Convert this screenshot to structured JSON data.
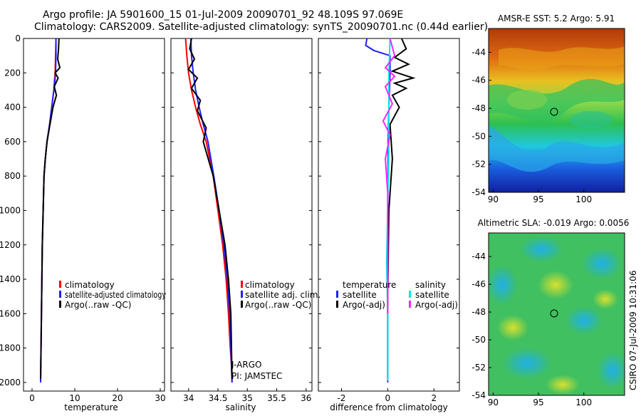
{
  "figure": {
    "title_line1": "Argo profile: JA 5901600_15 01-Jul-2009 20090701_92 48.109S 97.069E",
    "title_line2": "Climatology: CARS2009. Satellite-adjusted climatology: synTS_20090701.nc (0.44d earlier)",
    "side_stamp": "CSIRO 07-Jul-2009 10:31:06",
    "colors": {
      "climatology": "#ff0000",
      "satellite": "#1f1fff",
      "argo": "#000000",
      "sal_satellite": "#00e8e8",
      "sal_argo": "#ff22ff"
    }
  },
  "chart_data": [
    {
      "type": "line",
      "id": "temperature",
      "xlabel": "temperature",
      "ylabel": "",
      "xlim": [
        -2,
        31
      ],
      "ylim": [
        2050,
        0
      ],
      "xticks": [
        0,
        10,
        20,
        30
      ],
      "xtick_labels": [
        "0",
        "10",
        "20",
        "30"
      ],
      "yticks": [
        0,
        200,
        400,
        600,
        800,
        1000,
        1200,
        1400,
        1600,
        1800,
        2000
      ],
      "ytick_labels": [
        "0",
        "200",
        "400",
        "600",
        "800",
        "1000",
        "1200",
        "1400",
        "1600",
        "1800",
        "2000"
      ],
      "legend": [
        "climatology",
        "satellite-adjusted climatology",
        "Argo(..raw -QC)"
      ],
      "series": [
        {
          "name": "climatology",
          "color": "#ff0000",
          "x": [
            5.6,
            5.5,
            5.4,
            5.2,
            5.1,
            4.6,
            4.1,
            3.5,
            3.1,
            2.8,
            2.6,
            2.4,
            2.3,
            2.2,
            2.1,
            2.0
          ],
          "y": [
            0,
            100,
            200,
            260,
            300,
            400,
            500,
            600,
            700,
            800,
            1000,
            1200,
            1400,
            1600,
            1800,
            2000
          ]
        },
        {
          "name": "satellite-adjusted climatology",
          "color": "#1f1fff",
          "x": [
            5.6,
            5.6,
            5.5,
            5.3,
            5.1,
            4.6,
            4.1,
            3.5,
            3.1,
            2.8,
            2.6,
            2.4,
            2.3,
            2.2,
            2.1,
            2.0
          ],
          "y": [
            0,
            100,
            200,
            260,
            300,
            400,
            500,
            600,
            700,
            800,
            1000,
            1200,
            1400,
            1600,
            1800,
            2000
          ]
        },
        {
          "name": "Argo(..raw -QC)",
          "color": "#000000",
          "x": [
            6.3,
            6.2,
            6.0,
            6.5,
            5.4,
            6.1,
            5.2,
            5.7,
            4.9,
            4.2,
            3.5,
            3.1,
            2.8,
            2.6,
            2.4,
            2.3,
            2.2,
            2.1,
            2.0
          ],
          "y": [
            0,
            60,
            120,
            170,
            200,
            230,
            280,
            330,
            400,
            500,
            600,
            700,
            800,
            1000,
            1200,
            1400,
            1600,
            1800,
            1980
          ]
        }
      ]
    },
    {
      "type": "line",
      "id": "salinity",
      "xlabel": "salinity",
      "ylabel": "",
      "xlim": [
        33.7,
        36.1
      ],
      "ylim": [
        2050,
        0
      ],
      "xticks": [
        34,
        34.5,
        35,
        35.5,
        36
      ],
      "xtick_labels": [
        "34",
        "34.5",
        "35",
        "35.5",
        "36"
      ],
      "legend": [
        "climatology",
        "satellite adj. clim.",
        "Argo(..raw -QC)"
      ],
      "annotations": [
        "J-ARGO",
        "PI: JAMSTEC"
      ],
      "series": [
        {
          "name": "climatology",
          "color": "#ff0000",
          "x": [
            33.95,
            33.97,
            34.0,
            34.05,
            34.12,
            34.2,
            34.3,
            34.42,
            34.5,
            34.58,
            34.64,
            34.68,
            34.71,
            34.73,
            34.74
          ],
          "y": [
            0,
            100,
            200,
            300,
            400,
            500,
            600,
            800,
            1000,
            1200,
            1400,
            1600,
            1800,
            1900,
            2000
          ]
        },
        {
          "name": "satellite adj. clim.",
          "color": "#1f1fff",
          "x": [
            34.04,
            34.05,
            34.08,
            34.12,
            34.18,
            34.25,
            34.33,
            34.43,
            34.52,
            34.6,
            34.66,
            34.7,
            34.72,
            34.73,
            34.74
          ],
          "y": [
            0,
            100,
            200,
            300,
            400,
            500,
            600,
            800,
            1000,
            1200,
            1400,
            1600,
            1800,
            1900,
            2000
          ]
        },
        {
          "name": "Argo(..raw -QC)",
          "color": "#000000",
          "x": [
            34.05,
            34.02,
            34.1,
            34.0,
            34.15,
            34.05,
            34.2,
            34.15,
            34.3,
            34.25,
            34.42,
            34.52,
            34.62,
            34.68,
            34.72,
            34.73,
            34.74
          ],
          "y": [
            0,
            60,
            120,
            180,
            230,
            290,
            360,
            420,
            520,
            600,
            800,
            1000,
            1200,
            1400,
            1600,
            1800,
            1980
          ]
        }
      ]
    },
    {
      "type": "line",
      "id": "difference",
      "xlabel": "difference from climatology",
      "ylabel": "",
      "xlim": [
        -3,
        3.1
      ],
      "ylim": [
        2050,
        0
      ],
      "xticks": [
        -2,
        0,
        2
      ],
      "xtick_labels": [
        "-2",
        "0",
        "2"
      ],
      "legend_groups": [
        {
          "title": "temperature",
          "items": [
            "satellite",
            "Argo(-adj)"
          ]
        },
        {
          "title": "salinity",
          "items": [
            "satellite",
            "Argo(-adj)"
          ]
        }
      ],
      "series": [
        {
          "name": "temperature satellite",
          "color": "#1f1fff",
          "x": [
            -0.9,
            -0.95,
            -0.6,
            0.1,
            0.1,
            0.05,
            0.02,
            0.0,
            0.0,
            0.0
          ],
          "y": [
            0,
            40,
            70,
            100,
            200,
            400,
            600,
            1000,
            1500,
            2000
          ]
        },
        {
          "name": "temperature Argo(-adj)",
          "color": "#000000",
          "x": [
            0.6,
            0.8,
            0.3,
            0.9,
            0.2,
            1.1,
            0.3,
            0.8,
            0.2,
            0.5,
            0.1,
            0.2,
            0.05,
            0.0,
            0.0
          ],
          "y": [
            0,
            60,
            110,
            150,
            190,
            230,
            260,
            290,
            330,
            400,
            500,
            700,
            1000,
            1500,
            1980
          ]
        },
        {
          "name": "salinity satellite",
          "color": "#00e8e8",
          "x": [
            0.1,
            0.05,
            0.05,
            0.0,
            -0.05,
            0.0,
            0.0
          ],
          "y": [
            0,
            200,
            600,
            1000,
            1300,
            1600,
            1990
          ]
        },
        {
          "name": "salinity Argo(-adj)",
          "color": "#ff22ff",
          "x": [
            0.1,
            0.3,
            -0.1,
            0.3,
            -0.1,
            0.2,
            -0.2,
            0.1,
            -0.1,
            0.0,
            0.0,
            0.0
          ],
          "y": [
            0,
            100,
            170,
            220,
            280,
            380,
            480,
            560,
            700,
            900,
            1300,
            1600
          ]
        }
      ]
    },
    {
      "type": "heatmap",
      "id": "sst_map",
      "title": "AMSR-E SST: 5.2 Argo: 5.91",
      "xlim": [
        89.5,
        104.5
      ],
      "ylim": [
        -54,
        -42.3
      ],
      "xticks": [
        90,
        95,
        100
      ],
      "xtick_labels": [
        "90",
        "95",
        "100"
      ],
      "yticks": [
        -44,
        -46,
        -48,
        -50,
        -52,
        -54
      ],
      "ytick_labels": [
        "-44",
        "-46",
        "-48",
        "-50",
        "-52",
        "-54"
      ],
      "marker": {
        "lon": 97.07,
        "lat": -48.11
      }
    },
    {
      "type": "heatmap",
      "id": "sla_map",
      "title": "Altimetric SLA: -0.019 Argo: 0.0056",
      "xlim": [
        89.5,
        104.5
      ],
      "ylim": [
        -54,
        -42.3
      ],
      "xticks": [
        90,
        95,
        100
      ],
      "xtick_labels": [
        "90",
        "95",
        "100"
      ],
      "yticks": [
        -44,
        -46,
        -48,
        -50,
        -52,
        -54
      ],
      "ytick_labels": [
        "-44",
        "-46",
        "-48",
        "-50",
        "-52",
        "-54"
      ],
      "marker": {
        "lon": 97.07,
        "lat": -48.11
      }
    }
  ]
}
